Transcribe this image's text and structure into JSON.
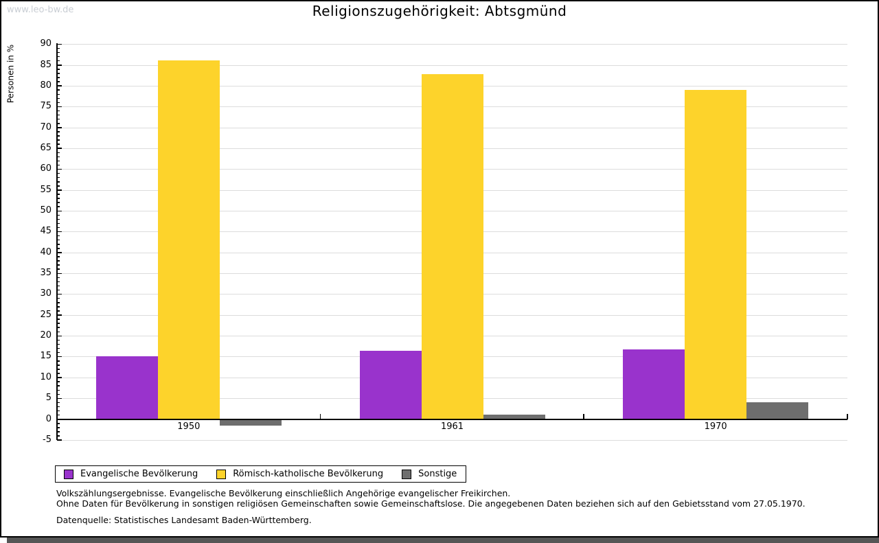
{
  "window": {
    "watermark": "www.leo-bw.de"
  },
  "chart_data": {
    "type": "bar",
    "title": "Religionszugehörigkeit: Abtsgmünd",
    "ylabel": "Personen in %",
    "categories": [
      "1950",
      "1961",
      "1970"
    ],
    "series": [
      {
        "name": "Evangelische Bevölkerung",
        "color": "#9933CC",
        "values": [
          15.0,
          16.4,
          16.8
        ]
      },
      {
        "name": "Römisch-katholische Bevölkerung",
        "color": "#FDD32B",
        "values": [
          86.1,
          82.8,
          79.0
        ]
      },
      {
        "name": "Sonstige",
        "color": "#6E6E6E",
        "values": [
          -1.4,
          1.0,
          4.1
        ]
      }
    ],
    "ylim": [
      -5,
      90
    ],
    "ytick_major": 5,
    "ytick_minor": 1,
    "grid": true,
    "legend_position": "bottom-left",
    "grid_color": "#DCDCDC",
    "axis_color": "#000000"
  },
  "footer": {
    "line1": "Volkszählungsergebnisse. Evangelische Bevölkerung einschließlich Angehörige evangelischer Freikirchen.",
    "line2": "Ohne Daten für Bevölkerung in sonstigen religiösen Gemeinschaften sowie Gemeinschaftslose. Die angegebenen Daten beziehen sich auf den Gebietsstand vom 27.05.1970.",
    "source": "Datenquelle: Statistisches Landesamt Baden-Württemberg."
  }
}
